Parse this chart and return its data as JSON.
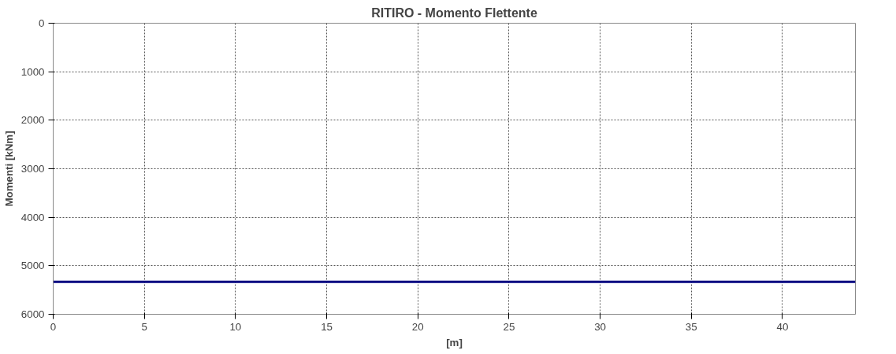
{
  "chart_data": {
    "type": "line",
    "title": "RITIRO - Momento Flettente",
    "xlabel": "[m]",
    "ylabel": "Momenti [kNm]",
    "x": [
      0,
      44
    ],
    "series": [
      {
        "color": "#000080",
        "values": [
          5330,
          5330
        ]
      }
    ],
    "xlim": [
      0,
      44
    ],
    "xticks": [
      0,
      5,
      10,
      15,
      20,
      25,
      30,
      35,
      40
    ],
    "ylim": [
      6000,
      0
    ],
    "yticks": [
      0,
      1000,
      2000,
      3000,
      4000,
      5000,
      6000
    ],
    "grid": true
  }
}
